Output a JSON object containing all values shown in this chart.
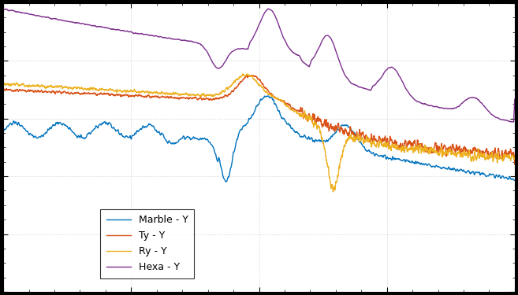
{
  "title": "",
  "xlabel": "",
  "ylabel": "",
  "legend_labels": [
    "Marble - Y",
    "Ty - Y",
    "Ry - Y",
    "Hexa - Y"
  ],
  "colors": [
    "#0072bd",
    "#d95319",
    "#edb120",
    "#7e2f8e"
  ],
  "background_color": "#ffffff",
  "outer_background": "#000000",
  "line_width": 1.0,
  "figsize": [
    6.57,
    3.75
  ],
  "dpi": 100
}
